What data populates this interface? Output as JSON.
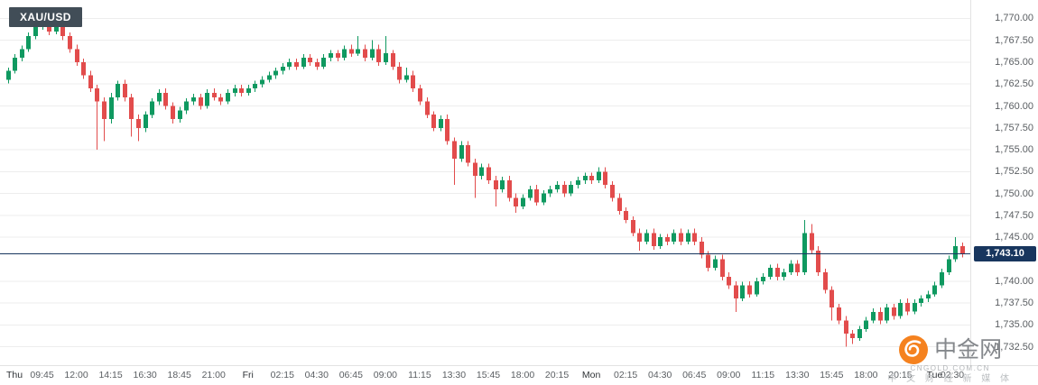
{
  "chart_data": {
    "type": "candlestick",
    "symbol": "XAU/USD",
    "interval": "15m",
    "current_price": 1743.1,
    "current_price_label": "1,743.10",
    "price_axis": {
      "labels": [
        "1,770.00",
        "1,767.50",
        "1,765.00",
        "1,762.50",
        "1,760.00",
        "1,757.50",
        "1,755.00",
        "1,752.50",
        "1,750.00",
        "1,747.50",
        "1,745.00",
        "1,740.00",
        "1,737.50",
        "1,735.00",
        "1,732.50"
      ],
      "values": [
        1770,
        1767.5,
        1765,
        1762.5,
        1760,
        1757.5,
        1755,
        1752.5,
        1750,
        1747.5,
        1745,
        1740,
        1737.5,
        1735,
        1732.5
      ],
      "step": 2.5
    },
    "time_axis": {
      "labels": [
        "Thu",
        "09:45",
        "12:00",
        "14:15",
        "16:30",
        "18:45",
        "21:00",
        "Fri",
        "02:15",
        "04:30",
        "06:45",
        "09:00",
        "11:15",
        "13:30",
        "15:45",
        "18:00",
        "20:15",
        "Mon",
        "02:15",
        "04:30",
        "06:45",
        "09:00",
        "11:15",
        "13:30",
        "15:45",
        "18:00",
        "20:15",
        "Tue",
        "02:30"
      ],
      "day_indices": [
        0,
        7,
        17,
        27
      ]
    },
    "ylim": [
      1730.4,
      1772.1
    ],
    "candles": [
      [
        1763.0,
        1764.4,
        1762.6,
        1764.0
      ],
      [
        1764.0,
        1765.9,
        1763.7,
        1765.5
      ],
      [
        1765.5,
        1766.9,
        1765.1,
        1766.5
      ],
      [
        1766.5,
        1768.4,
        1766.2,
        1768.0
      ],
      [
        1768.0,
        1769.4,
        1767.6,
        1769.0
      ],
      [
        1769.0,
        1770.5,
        1768.7,
        1769.5
      ],
      [
        1769.5,
        1770.0,
        1768.1,
        1768.5
      ],
      [
        1768.5,
        1771.0,
        1768.2,
        1769.8
      ],
      [
        1769.8,
        1770.3,
        1767.5,
        1768.0
      ],
      [
        1768.0,
        1768.4,
        1766.1,
        1766.5
      ],
      [
        1766.5,
        1767.0,
        1764.6,
        1765.0
      ],
      [
        1765.0,
        1765.4,
        1763.1,
        1763.5
      ],
      [
        1763.5,
        1764.0,
        1761.6,
        1762.0
      ],
      [
        1762.0,
        1762.4,
        1755.0,
        1760.5
      ],
      [
        1760.5,
        1761.0,
        1756.0,
        1758.5
      ],
      [
        1758.5,
        1761.5,
        1758.0,
        1761.0
      ],
      [
        1761.0,
        1762.9,
        1760.6,
        1762.5
      ],
      [
        1762.5,
        1763.0,
        1760.5,
        1761.0
      ],
      [
        1761.0,
        1761.4,
        1756.5,
        1758.5
      ],
      [
        1758.5,
        1759.0,
        1756.0,
        1757.5
      ],
      [
        1757.5,
        1759.4,
        1757.0,
        1759.0
      ],
      [
        1759.0,
        1760.9,
        1758.6,
        1760.5
      ],
      [
        1760.5,
        1761.9,
        1760.1,
        1761.5
      ],
      [
        1761.5,
        1762.0,
        1759.6,
        1760.0
      ],
      [
        1760.0,
        1760.4,
        1758.0,
        1758.5
      ],
      [
        1758.5,
        1759.9,
        1758.1,
        1759.5
      ],
      [
        1759.5,
        1760.9,
        1759.1,
        1760.5
      ],
      [
        1760.5,
        1761.4,
        1760.1,
        1761.0
      ],
      [
        1761.0,
        1761.4,
        1759.6,
        1760.0
      ],
      [
        1760.0,
        1761.9,
        1759.7,
        1761.5
      ],
      [
        1761.5,
        1762.0,
        1760.6,
        1761.0
      ],
      [
        1761.0,
        1761.4,
        1760.1,
        1760.5
      ],
      [
        1760.5,
        1761.9,
        1760.2,
        1761.5
      ],
      [
        1761.5,
        1762.4,
        1761.1,
        1762.0
      ],
      [
        1762.0,
        1762.4,
        1761.1,
        1761.5
      ],
      [
        1761.5,
        1762.4,
        1761.2,
        1762.0
      ],
      [
        1762.0,
        1762.9,
        1761.6,
        1762.5
      ],
      [
        1762.5,
        1763.4,
        1762.1,
        1763.0
      ],
      [
        1763.0,
        1763.9,
        1762.7,
        1763.5
      ],
      [
        1763.5,
        1764.4,
        1763.1,
        1764.0
      ],
      [
        1764.0,
        1764.9,
        1763.6,
        1764.5
      ],
      [
        1764.5,
        1765.4,
        1764.1,
        1765.0
      ],
      [
        1765.0,
        1765.4,
        1764.1,
        1764.5
      ],
      [
        1764.5,
        1765.9,
        1764.2,
        1765.5
      ],
      [
        1765.5,
        1765.9,
        1764.6,
        1765.0
      ],
      [
        1765.0,
        1765.4,
        1764.1,
        1764.5
      ],
      [
        1764.5,
        1765.9,
        1764.2,
        1765.5
      ],
      [
        1765.5,
        1766.4,
        1765.1,
        1766.0
      ],
      [
        1766.0,
        1766.4,
        1765.1,
        1765.5
      ],
      [
        1765.5,
        1766.9,
        1765.2,
        1766.5
      ],
      [
        1766.5,
        1767.0,
        1765.6,
        1766.0
      ],
      [
        1766.0,
        1768.0,
        1765.7,
        1766.5
      ],
      [
        1766.5,
        1767.0,
        1765.1,
        1765.5
      ],
      [
        1765.5,
        1767.5,
        1765.2,
        1766.5
      ],
      [
        1766.5,
        1767.0,
        1764.6,
        1765.0
      ],
      [
        1765.0,
        1768.0,
        1764.7,
        1766.0
      ],
      [
        1766.0,
        1766.4,
        1764.1,
        1764.5
      ],
      [
        1764.5,
        1765.0,
        1762.6,
        1763.0
      ],
      [
        1763.0,
        1764.4,
        1762.7,
        1763.5
      ],
      [
        1763.5,
        1764.0,
        1761.6,
        1762.0
      ],
      [
        1762.0,
        1762.4,
        1760.1,
        1760.5
      ],
      [
        1760.5,
        1761.0,
        1758.6,
        1759.0
      ],
      [
        1759.0,
        1759.4,
        1757.1,
        1757.5
      ],
      [
        1757.5,
        1758.9,
        1757.1,
        1758.5
      ],
      [
        1758.5,
        1759.0,
        1755.6,
        1756.0
      ],
      [
        1756.0,
        1756.4,
        1751.0,
        1754.0
      ],
      [
        1754.0,
        1756.0,
        1753.6,
        1755.5
      ],
      [
        1755.5,
        1756.0,
        1753.1,
        1753.5
      ],
      [
        1753.5,
        1754.0,
        1749.5,
        1752.0
      ],
      [
        1752.0,
        1753.4,
        1751.6,
        1753.0
      ],
      [
        1753.0,
        1753.4,
        1751.1,
        1751.5
      ],
      [
        1751.5,
        1752.0,
        1748.5,
        1750.5
      ],
      [
        1750.5,
        1751.9,
        1750.1,
        1751.5
      ],
      [
        1751.5,
        1752.0,
        1749.1,
        1749.5
      ],
      [
        1749.5,
        1750.0,
        1747.8,
        1748.5
      ],
      [
        1748.5,
        1749.9,
        1748.2,
        1749.5
      ],
      [
        1749.5,
        1750.9,
        1749.2,
        1750.5
      ],
      [
        1750.5,
        1751.0,
        1748.6,
        1749.0
      ],
      [
        1749.0,
        1750.4,
        1748.7,
        1750.0
      ],
      [
        1750.0,
        1750.9,
        1749.6,
        1750.5
      ],
      [
        1750.5,
        1751.4,
        1750.1,
        1751.0
      ],
      [
        1751.0,
        1751.4,
        1749.6,
        1750.0
      ],
      [
        1750.0,
        1751.4,
        1749.7,
        1751.0
      ],
      [
        1751.0,
        1751.9,
        1750.6,
        1751.5
      ],
      [
        1751.5,
        1752.4,
        1751.1,
        1752.0
      ],
      [
        1752.0,
        1752.4,
        1751.1,
        1751.5
      ],
      [
        1751.5,
        1753.0,
        1751.2,
        1752.5
      ],
      [
        1752.5,
        1753.0,
        1750.6,
        1751.0
      ],
      [
        1751.0,
        1751.4,
        1749.1,
        1749.5
      ],
      [
        1749.5,
        1750.0,
        1747.6,
        1748.0
      ],
      [
        1748.0,
        1748.4,
        1746.6,
        1747.0
      ],
      [
        1747.0,
        1747.4,
        1745.1,
        1745.5
      ],
      [
        1745.5,
        1746.0,
        1743.5,
        1744.5
      ],
      [
        1744.5,
        1745.9,
        1744.2,
        1745.5
      ],
      [
        1745.5,
        1746.0,
        1743.6,
        1744.0
      ],
      [
        1744.0,
        1745.4,
        1743.7,
        1745.0
      ],
      [
        1745.0,
        1745.4,
        1744.1,
        1744.5
      ],
      [
        1744.5,
        1745.9,
        1744.2,
        1745.5
      ],
      [
        1745.5,
        1746.0,
        1744.1,
        1744.5
      ],
      [
        1744.5,
        1745.9,
        1744.2,
        1745.5
      ],
      [
        1745.5,
        1746.0,
        1744.1,
        1744.5
      ],
      [
        1744.5,
        1745.0,
        1742.6,
        1743.0
      ],
      [
        1743.0,
        1743.4,
        1741.1,
        1741.5
      ],
      [
        1741.5,
        1742.9,
        1741.2,
        1742.5
      ],
      [
        1742.5,
        1743.0,
        1740.1,
        1740.5
      ],
      [
        1740.5,
        1741.0,
        1739.1,
        1739.5
      ],
      [
        1739.5,
        1740.0,
        1736.5,
        1738.0
      ],
      [
        1738.0,
        1739.9,
        1737.7,
        1739.5
      ],
      [
        1739.5,
        1740.0,
        1738.1,
        1738.5
      ],
      [
        1738.5,
        1740.4,
        1738.2,
        1740.0
      ],
      [
        1740.0,
        1740.9,
        1739.6,
        1740.5
      ],
      [
        1740.5,
        1741.9,
        1740.2,
        1741.5
      ],
      [
        1741.5,
        1742.0,
        1740.1,
        1740.5
      ],
      [
        1740.5,
        1741.4,
        1740.1,
        1741.0
      ],
      [
        1741.0,
        1742.4,
        1740.7,
        1742.0
      ],
      [
        1742.0,
        1742.4,
        1740.6,
        1741.0
      ],
      [
        1741.0,
        1747.0,
        1740.7,
        1745.5
      ],
      [
        1745.5,
        1746.5,
        1743.1,
        1743.5
      ],
      [
        1743.5,
        1744.0,
        1740.6,
        1741.0
      ],
      [
        1741.0,
        1741.4,
        1738.6,
        1739.0
      ],
      [
        1739.0,
        1739.4,
        1735.5,
        1737.0
      ],
      [
        1737.0,
        1737.4,
        1735.1,
        1735.5
      ],
      [
        1735.5,
        1736.0,
        1732.5,
        1734.0
      ],
      [
        1734.0,
        1734.4,
        1732.8,
        1733.5
      ],
      [
        1733.5,
        1734.9,
        1733.2,
        1734.5
      ],
      [
        1734.5,
        1735.9,
        1734.2,
        1735.5
      ],
      [
        1735.5,
        1736.9,
        1735.2,
        1736.5
      ],
      [
        1736.5,
        1737.0,
        1735.1,
        1735.5
      ],
      [
        1735.5,
        1737.4,
        1735.2,
        1737.0
      ],
      [
        1737.0,
        1737.4,
        1735.6,
        1736.0
      ],
      [
        1736.0,
        1737.9,
        1735.7,
        1737.5
      ],
      [
        1737.5,
        1738.0,
        1736.1,
        1736.5
      ],
      [
        1736.5,
        1737.9,
        1736.2,
        1737.5
      ],
      [
        1737.5,
        1738.4,
        1737.1,
        1738.0
      ],
      [
        1738.0,
        1738.9,
        1737.6,
        1738.5
      ],
      [
        1738.5,
        1739.9,
        1738.2,
        1739.5
      ],
      [
        1739.5,
        1741.4,
        1739.2,
        1741.0
      ],
      [
        1741.0,
        1742.9,
        1740.7,
        1742.5
      ],
      [
        1742.5,
        1745.0,
        1742.2,
        1744.0
      ],
      [
        1744.0,
        1744.4,
        1742.7,
        1743.1
      ]
    ]
  },
  "colors": {
    "up": "#0f9960",
    "down": "#e24c4c",
    "price_line": "#18365e",
    "symbol_badge_bg": "#414d57",
    "grid": "#ededed",
    "axis_border": "#e3e3e3",
    "axis_text": "#5a5e62",
    "watermark_orange": "#f5821f"
  },
  "watermark": {
    "brand": "中金网",
    "domain": "CNGOLD.COM.CN",
    "tagline": "中 文 财 经 新 媒 体"
  }
}
